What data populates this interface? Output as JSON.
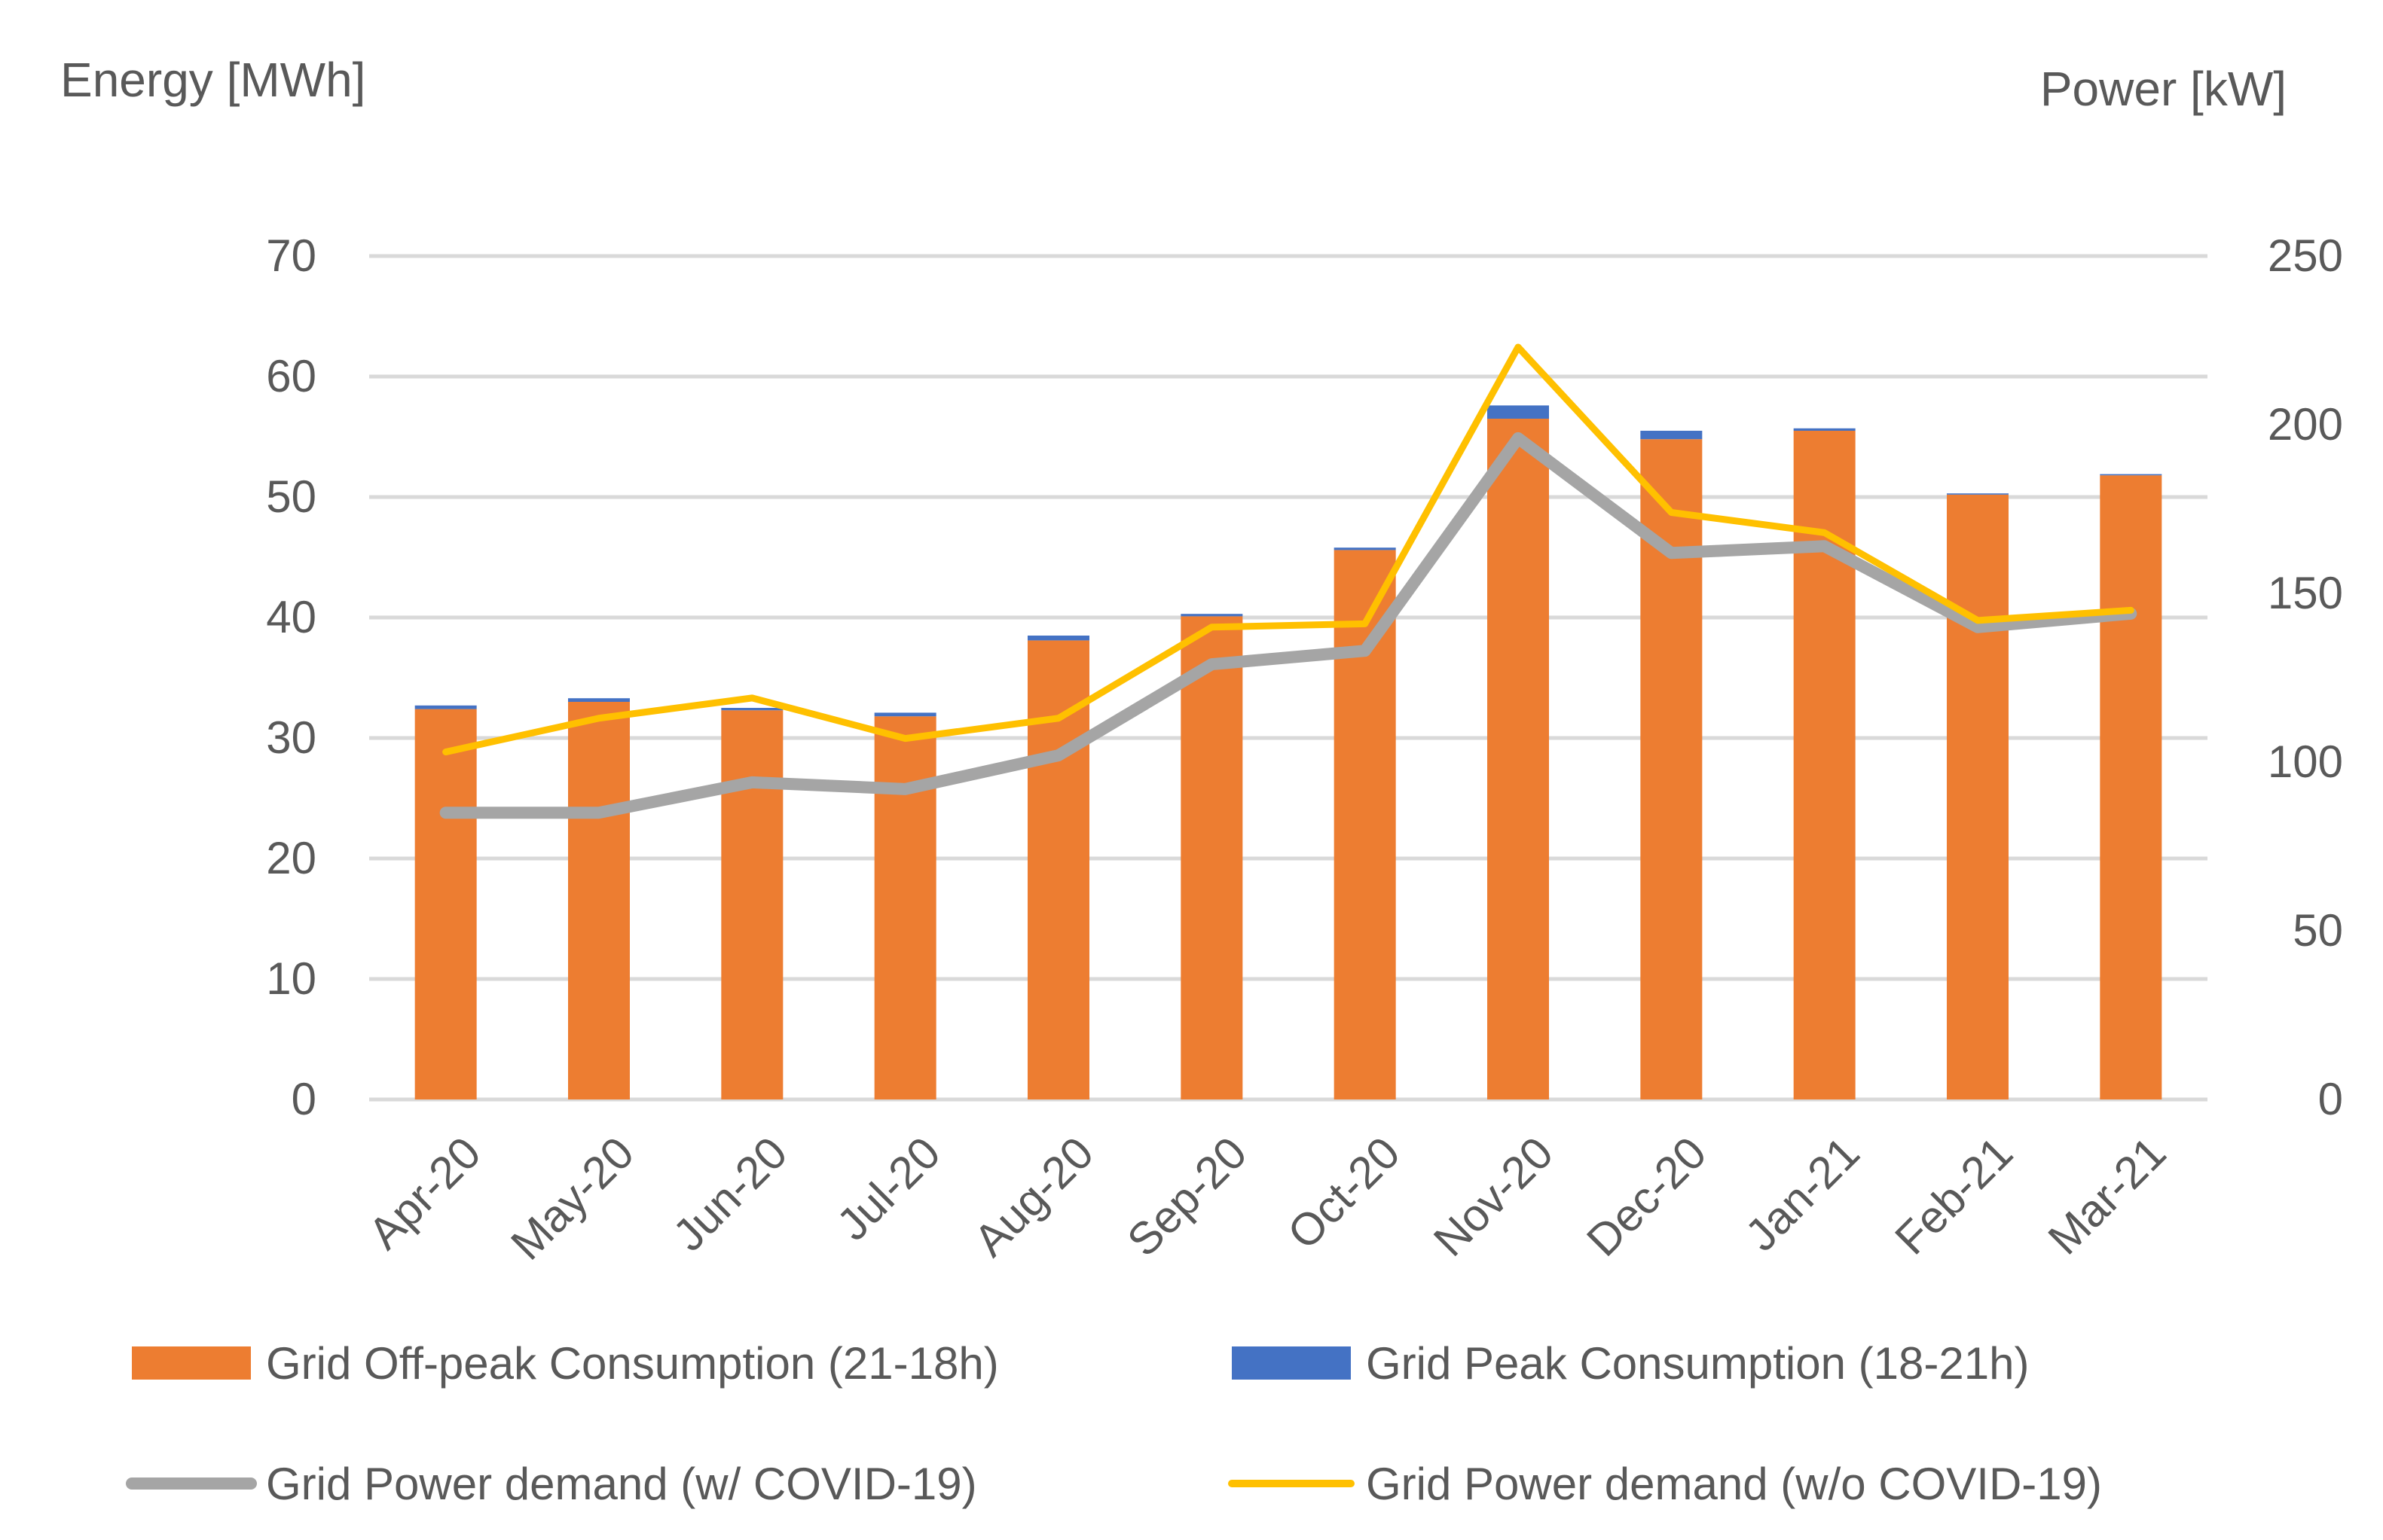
{
  "chart_data": {
    "type": "bar",
    "stacked": true,
    "categories": [
      "Apr-20",
      "May-20",
      "Jun-20",
      "Jul-20",
      "Aug-20",
      "Sep-20",
      "Oct-20",
      "Nov-20",
      "Dec-20",
      "Jan-21",
      "Feb-21",
      "Mar-21"
    ],
    "y_left": {
      "label": "Energy [MWh]",
      "ylim": [
        0,
        70
      ],
      "ticks": [
        0,
        10,
        20,
        30,
        40,
        50,
        60,
        70
      ]
    },
    "y_right": {
      "label": "Power [kW]",
      "ylim": [
        0,
        250
      ],
      "ticks": [
        0,
        50,
        100,
        150,
        200,
        250
      ]
    },
    "grid": true,
    "legend_position": "bottom",
    "series": [
      {
        "name": "Grid Off-peak Consumption (21-18h)",
        "type": "bar",
        "axis": "left",
        "color": "#ED7D31",
        "values": [
          32.4,
          33.0,
          32.3,
          31.8,
          38.1,
          40.1,
          45.6,
          56.5,
          54.8,
          55.5,
          50.2,
          51.8
        ]
      },
      {
        "name": "Grid Peak Consumption (18-21h)",
        "type": "bar",
        "axis": "left",
        "color": "#4472C4",
        "values": [
          0.3,
          0.3,
          0.2,
          0.3,
          0.4,
          0.2,
          0.2,
          1.1,
          0.7,
          0.2,
          0.1,
          0.1
        ]
      },
      {
        "name": "Grid Power demand (w/ COVID-19)",
        "type": "line",
        "axis": "right",
        "color": "#A5A5A5",
        "values": [
          85,
          85,
          94,
          92,
          102,
          129,
          133,
          196,
          162,
          164,
          140,
          144
        ]
      },
      {
        "name": "Grid Power demand (w/o COVID-19)",
        "type": "line",
        "axis": "right",
        "color": "#FFC000",
        "values": [
          103,
          113,
          119,
          107,
          113,
          140,
          141,
          223,
          174,
          168,
          142,
          145
        ]
      }
    ]
  }
}
